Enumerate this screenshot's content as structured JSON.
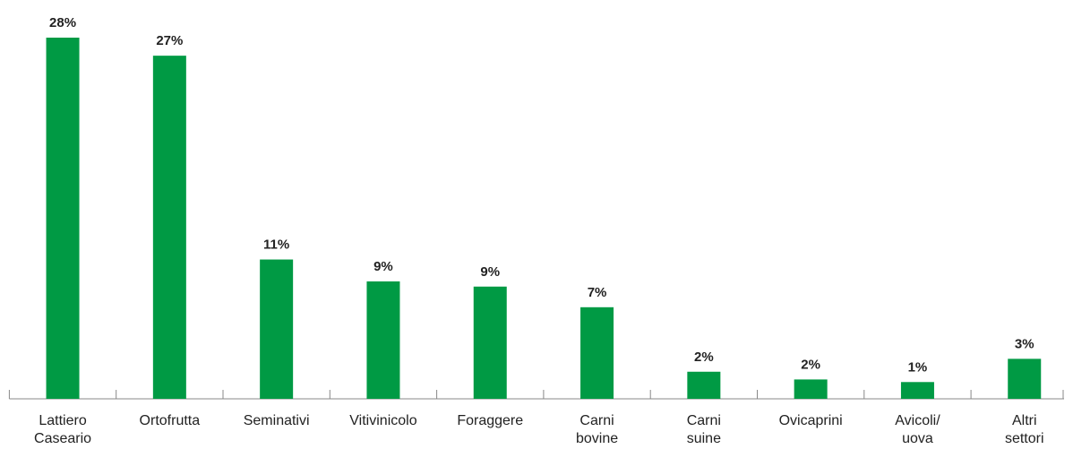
{
  "chart_data": {
    "type": "bar",
    "categories": [
      [
        "Lattiero",
        "Caseario"
      ],
      [
        "Ortofrutta"
      ],
      [
        "Seminativi"
      ],
      [
        "Vitivinicolo"
      ],
      [
        "Foraggere"
      ],
      [
        "Carni",
        "bovine"
      ],
      [
        "Carni",
        "suine"
      ],
      [
        "Ovicaprini"
      ],
      [
        "Avicoli/",
        "uova"
      ],
      [
        "Altri",
        "settori"
      ]
    ],
    "values": [
      28,
      26.6,
      10.8,
      9.1,
      8.7,
      7.1,
      2.1,
      1.5,
      1.3,
      3.1
    ],
    "value_labels": [
      "28%",
      "27%",
      "11%",
      "9%",
      "9%",
      "7%",
      "2%",
      "2%",
      "1%",
      "3%"
    ],
    "color": "#009a44",
    "ylim": [
      0,
      28
    ]
  }
}
